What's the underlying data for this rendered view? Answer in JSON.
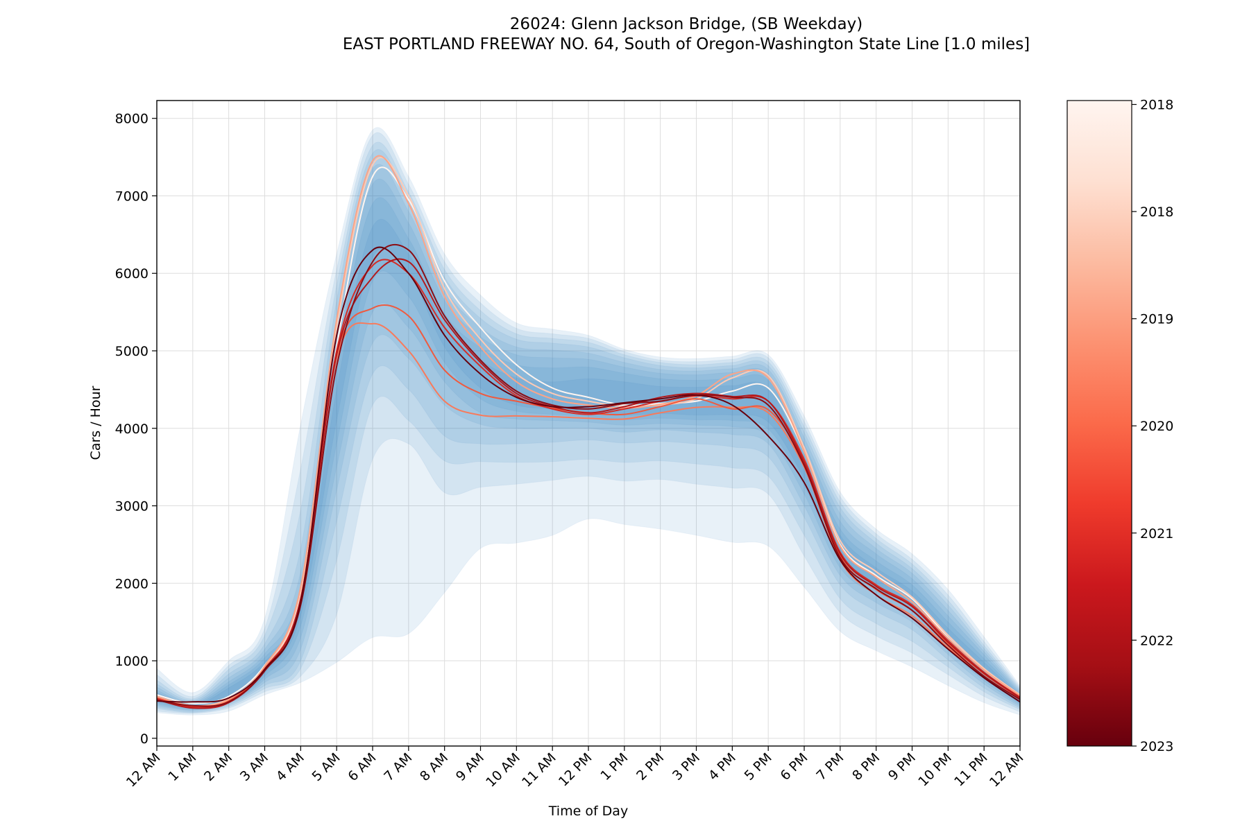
{
  "chart_data": {
    "type": "line",
    "title": "26024: Glenn Jackson Bridge, (SB Weekday)",
    "subtitle": "EAST PORTLAND FREEWAY NO. 64, South of Oregon-Washington State Line [1.0 miles]",
    "xlabel": "Time of Day",
    "ylabel": "Cars / Hour",
    "ylim": [
      -100,
      8230
    ],
    "xlim": [
      0,
      24
    ],
    "grid": true,
    "x_tick_labels": [
      "12 AM",
      "1 AM",
      "2 AM",
      "3 AM",
      "4 AM",
      "5 AM",
      "6 AM",
      "7 AM",
      "8 AM",
      "9 AM",
      "10 AM",
      "11 AM",
      "12 PM",
      "1 PM",
      "2 PM",
      "3 PM",
      "4 PM",
      "5 PM",
      "6 PM",
      "7 PM",
      "8 PM",
      "9 PM",
      "10 PM",
      "11 PM",
      "12 AM"
    ],
    "y_ticks": [
      0,
      1000,
      2000,
      3000,
      4000,
      5000,
      6000,
      7000,
      8000
    ],
    "x": [
      0,
      1,
      2,
      3,
      4,
      5,
      6,
      7,
      8,
      9,
      10,
      11,
      12,
      13,
      14,
      15,
      16,
      17,
      18,
      19,
      20,
      21,
      22,
      23,
      24
    ],
    "band_color": "#2f7ebc",
    "bands": [
      {
        "lower": [
          330,
          300,
          350,
          560,
          720,
          980,
          1300,
          1350,
          1880,
          2450,
          2520,
          2620,
          2830,
          2760,
          2700,
          2620,
          2530,
          2480,
          1950,
          1380,
          1130,
          920,
          680,
          460,
          300
        ],
        "upper": [
          900,
          590,
          1000,
          1550,
          4050,
          6250,
          7850,
          7250,
          6250,
          5720,
          5360,
          5280,
          5200,
          5020,
          4920,
          4900,
          4930,
          4950,
          4160,
          3180,
          2700,
          2380,
          1920,
          1310,
          680
        ]
      },
      {
        "lower": [
          350,
          320,
          390,
          600,
          800,
          1600,
          3600,
          3800,
          3170,
          3240,
          3280,
          3330,
          3380,
          3320,
          3340,
          3280,
          3230,
          3150,
          2350,
          1620,
          1320,
          1100,
          820,
          540,
          340
        ],
        "upper": [
          820,
          540,
          940,
          1420,
          3480,
          6050,
          7780,
          7150,
          6150,
          5620,
          5290,
          5220,
          5160,
          4990,
          4880,
          4860,
          4890,
          4910,
          4090,
          3120,
          2640,
          2310,
          1850,
          1250,
          660
        ]
      },
      {
        "lower": [
          380,
          330,
          410,
          640,
          900,
          2300,
          4300,
          4100,
          3580,
          3570,
          3560,
          3570,
          3600,
          3560,
          3580,
          3540,
          3490,
          3380,
          2620,
          1800,
          1480,
          1250,
          920,
          600,
          370
        ],
        "upper": [
          750,
          510,
          890,
          1330,
          2950,
          5850,
          7650,
          7050,
          6050,
          5520,
          5220,
          5160,
          5110,
          4950,
          4850,
          4820,
          4850,
          4860,
          4020,
          3050,
          2580,
          2250,
          1780,
          1200,
          640
        ]
      },
      {
        "lower": [
          400,
          340,
          430,
          680,
          1000,
          2800,
          4700,
          4500,
          3900,
          3800,
          3800,
          3820,
          3850,
          3810,
          3830,
          3800,
          3760,
          3630,
          2850,
          1980,
          1640,
          1400,
          1010,
          650,
          390
        ],
        "upper": [
          700,
          490,
          830,
          1220,
          2450,
          5650,
          7550,
          6950,
          5950,
          5420,
          5150,
          5100,
          5050,
          4910,
          4810,
          4780,
          4810,
          4810,
          3950,
          2980,
          2520,
          2190,
          1720,
          1160,
          620
        ]
      },
      {
        "lower": [
          420,
          360,
          450,
          720,
          1150,
          3200,
          5100,
          4900,
          4300,
          4050,
          4000,
          4000,
          4000,
          3950,
          3980,
          3950,
          3920,
          3800,
          3000,
          2100,
          1750,
          1500,
          1080,
          700,
          410
        ],
        "upper": [
          660,
          470,
          780,
          1150,
          2150,
          5400,
          7350,
          6800,
          5800,
          5300,
          5050,
          5010,
          4970,
          4850,
          4760,
          4740,
          4770,
          4760,
          3880,
          2900,
          2450,
          2130,
          1650,
          1120,
          600
        ]
      },
      {
        "lower": [
          440,
          370,
          460,
          760,
          1300,
          3500,
          5500,
          5300,
          4600,
          4200,
          4120,
          4100,
          4080,
          4040,
          4060,
          4040,
          4020,
          3900,
          3150,
          2200,
          1850,
          1580,
          1140,
          740,
          430
        ],
        "upper": [
          620,
          455,
          730,
          1090,
          1950,
          5150,
          7150,
          6650,
          5650,
          5180,
          4950,
          4910,
          4890,
          4790,
          4710,
          4690,
          4720,
          4700,
          3800,
          2800,
          2380,
          2060,
          1580,
          1080,
          580
        ]
      },
      {
        "lower": [
          460,
          385,
          475,
          800,
          1450,
          3800,
          5900,
          5700,
          4850,
          4380,
          4220,
          4180,
          4150,
          4110,
          4130,
          4110,
          4100,
          3990,
          3260,
          2300,
          1930,
          1660,
          1200,
          780,
          450
        ],
        "upper": [
          590,
          440,
          690,
          1040,
          1800,
          4850,
          6900,
          6450,
          5480,
          5040,
          4820,
          4780,
          4790,
          4710,
          4640,
          4620,
          4640,
          4620,
          3700,
          2700,
          2290,
          1980,
          1500,
          1030,
          560
        ]
      },
      {
        "lower": [
          480,
          400,
          490,
          840,
          1580,
          4100,
          6200,
          6000,
          5050,
          4520,
          4300,
          4250,
          4210,
          4170,
          4190,
          4170,
          4170,
          4080,
          3350,
          2380,
          2000,
          1720,
          1250,
          820,
          470
        ],
        "upper": [
          560,
          425,
          650,
          990,
          1680,
          4500,
          6600,
          6250,
          5320,
          4880,
          4650,
          4600,
          4640,
          4600,
          4540,
          4530,
          4550,
          4520,
          3600,
          2620,
          2200,
          1900,
          1420,
          980,
          540
        ]
      }
    ],
    "series": [
      {
        "color": "#fff5f0",
        "values": [
          560,
          450,
          540,
          940,
          1820,
          5050,
          7250,
          6950,
          5900,
          5300,
          4820,
          4520,
          4400,
          4300,
          4320,
          4350,
          4480,
          4520,
          3700,
          2500,
          2100,
          1800,
          1300,
          880,
          540
        ]
      },
      {
        "color": "#fdcab5",
        "values": [
          540,
          420,
          510,
          920,
          1900,
          5300,
          7400,
          7000,
          5800,
          5150,
          4700,
          4450,
          4350,
          4280,
          4300,
          4380,
          4650,
          4680,
          3750,
          2550,
          2150,
          1820,
          1330,
          900,
          560
        ]
      },
      {
        "color": "#fca487",
        "values": [
          540,
          420,
          500,
          930,
          1950,
          5400,
          7450,
          6900,
          5700,
          5050,
          4600,
          4380,
          4300,
          4260,
          4310,
          4420,
          4700,
          4650,
          3700,
          2480,
          2080,
          1760,
          1290,
          880,
          550
        ]
      },
      {
        "color": "#f87a5b",
        "values": [
          520,
          410,
          480,
          900,
          1750,
          4900,
          5350,
          5000,
          4350,
          4170,
          4160,
          4150,
          4130,
          4120,
          4200,
          4270,
          4270,
          4200,
          3500,
          2300,
          1850,
          1580,
          1170,
          800,
          500
        ]
      },
      {
        "color": "#ef5a3f",
        "values": [
          520,
          400,
          480,
          900,
          1800,
          4950,
          5550,
          5450,
          4750,
          4450,
          4350,
          4260,
          4200,
          4180,
          4280,
          4380,
          4250,
          4240,
          3560,
          2350,
          1920,
          1650,
          1220,
          830,
          520
        ]
      },
      {
        "color": "#d42d27",
        "values": [
          510,
          400,
          470,
          890,
          1800,
          5000,
          6100,
          6000,
          5300,
          4800,
          4420,
          4250,
          4180,
          4250,
          4350,
          4420,
          4380,
          4350,
          3600,
          2400,
          1980,
          1720,
          1260,
          850,
          530
        ]
      },
      {
        "color": "#b31a1d",
        "values": [
          500,
          390,
          460,
          880,
          1790,
          4950,
          5950,
          6150,
          5400,
          4850,
          4450,
          4280,
          4200,
          4280,
          4400,
          4450,
          4410,
          4350,
          3560,
          2380,
          1960,
          1700,
          1240,
          840,
          520
        ]
      },
      {
        "color": "#8c0d14",
        "values": [
          490,
          420,
          470,
          870,
          1720,
          4800,
          6150,
          6300,
          5450,
          4880,
          4480,
          4300,
          4250,
          4320,
          4350,
          4430,
          4400,
          4300,
          3520,
          2330,
          1930,
          1650,
          1200,
          800,
          500
        ]
      },
      {
        "color": "#67000d",
        "values": [
          480,
          470,
          520,
          890,
          1760,
          5200,
          6300,
          6000,
          5200,
          4700,
          4400,
          4280,
          4280,
          4330,
          4380,
          4430,
          4300,
          3900,
          3300,
          2300,
          1850,
          1550,
          1150,
          780,
          470
        ]
      }
    ],
    "colorbar": {
      "colormap": "Reds_r",
      "colors": [
        "#67000d",
        "#a50f15",
        "#cb181d",
        "#ef3b2c",
        "#fb6a4a",
        "#fc9272",
        "#fcbba1",
        "#fee0d2",
        "#fff5f0"
      ],
      "tick_labels": [
        "2018",
        "2018",
        "2019",
        "2020",
        "2021",
        "2022",
        "2023"
      ],
      "tick_fractions": [
        0.994,
        0.828,
        0.662,
        0.496,
        0.33,
        0.164,
        0.0
      ]
    }
  }
}
